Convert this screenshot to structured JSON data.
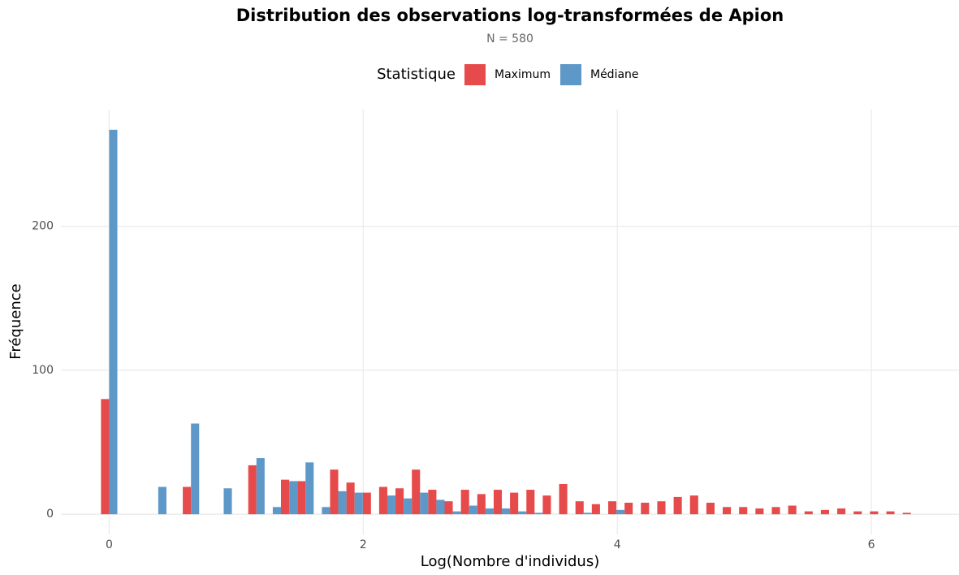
{
  "chart_data": {
    "type": "histogram",
    "title": "Distribution des observations log-transformées de Apion",
    "subtitle": "N = 580",
    "x_label": "Log(Nombre d'individus)",
    "y_label": "Fréquence",
    "legend_title": "Statistique",
    "legend_position": "top",
    "grid": true,
    "bins": [
      -0.0644,
      0.0644,
      0.1932,
      0.322,
      0.4508,
      0.5796,
      0.7084,
      0.8372,
      0.966,
      1.0948,
      1.2236,
      1.3524,
      1.4812,
      1.61,
      1.7388,
      1.8676,
      1.9964,
      2.1252,
      2.254,
      2.3828,
      2.5116,
      2.6404,
      2.7692,
      2.898,
      3.0268,
      3.1556,
      3.2844,
      3.4132,
      3.542,
      3.6708,
      3.7996,
      3.9284,
      4.0572,
      4.186,
      4.3148,
      4.4436,
      4.5724,
      4.7012,
      4.83,
      4.9588,
      5.0876,
      5.2164,
      5.3452,
      5.474,
      5.6028,
      5.7316,
      5.8604,
      5.9892,
      6.118,
      6.2468,
      6.3756
    ],
    "series": [
      {
        "name": "Maximum",
        "color": "#e64a4b",
        "values": [
          80,
          0,
          0,
          0,
          0,
          19,
          0,
          0,
          0,
          34,
          0,
          24,
          23,
          0,
          31,
          22,
          15,
          19,
          18,
          31,
          17,
          9,
          17,
          14,
          17,
          15,
          17,
          13,
          21,
          9,
          7,
          9,
          8,
          8,
          9,
          12,
          13,
          8,
          5,
          5,
          4,
          5,
          6,
          2,
          3,
          4,
          2,
          2,
          2,
          1
        ]
      },
      {
        "name": "Médiane",
        "color": "#5e98c8",
        "values": [
          267,
          0,
          0,
          19,
          0,
          63,
          0,
          18,
          0,
          39,
          5,
          23,
          36,
          5,
          16,
          15,
          0,
          13,
          11,
          15,
          10,
          2,
          6,
          4,
          4,
          2,
          1,
          0,
          0,
          1,
          0,
          3,
          0,
          0,
          0,
          0,
          0,
          0,
          0,
          0,
          0,
          0,
          0,
          0,
          0,
          0,
          0,
          0,
          0,
          0
        ]
      }
    ],
    "xlim": [
      -0.38,
      6.69
    ],
    "xticks": [
      0,
      2,
      4,
      6
    ],
    "ylim": [
      -14,
      281
    ],
    "yticks": [
      0,
      100,
      200
    ]
  }
}
